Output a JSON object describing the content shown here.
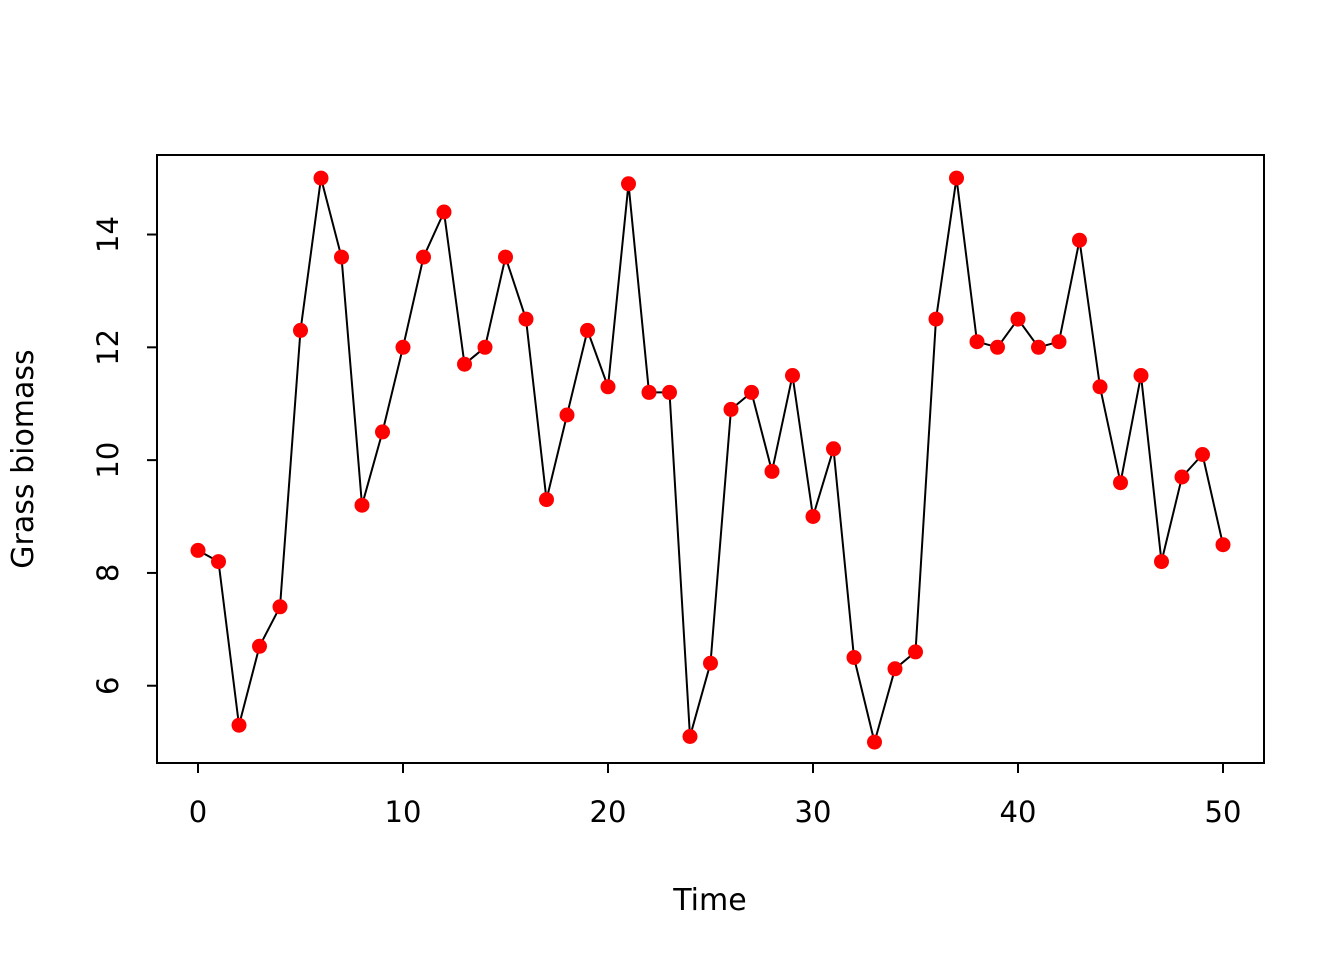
{
  "chart_data": {
    "type": "line",
    "title": "",
    "xlabel": "Time",
    "ylabel": "Grass biomass",
    "series_name": "Grass biomass",
    "x": [
      0,
      1,
      2,
      3,
      4,
      5,
      6,
      7,
      8,
      9,
      10,
      11,
      12,
      13,
      14,
      15,
      16,
      17,
      18,
      19,
      20,
      21,
      22,
      23,
      24,
      25,
      26,
      27,
      28,
      29,
      30,
      31,
      32,
      33,
      34,
      35,
      36,
      37,
      38,
      39,
      40,
      41,
      42,
      43,
      44,
      45,
      46,
      47,
      48,
      49,
      50
    ],
    "values": [
      8.4,
      8.2,
      5.3,
      6.7,
      7.4,
      12.3,
      15.0,
      13.6,
      9.2,
      10.5,
      12.0,
      13.6,
      14.4,
      11.7,
      12.0,
      13.6,
      12.5,
      9.3,
      10.8,
      12.3,
      11.3,
      14.9,
      11.2,
      11.2,
      5.1,
      6.4,
      10.9,
      11.2,
      9.8,
      11.5,
      9.0,
      10.2,
      6.5,
      5.0,
      6.3,
      6.6,
      12.5,
      15.0,
      12.1,
      12.0,
      12.5,
      12.0,
      12.1,
      13.9,
      11.3,
      9.6,
      11.5,
      8.2,
      9.7,
      10.1,
      8.5
    ],
    "x_ticks": [
      0,
      10,
      20,
      30,
      40,
      50
    ],
    "y_ticks": [
      6,
      8,
      10,
      12,
      14
    ],
    "xlim": [
      -2,
      52
    ],
    "ylim": [
      4.63,
      15.41
    ],
    "grid": false,
    "legend": "none",
    "marker": "filled-circle",
    "colors": {
      "point": "#ff0000",
      "line": "#000000",
      "axis": "#000000",
      "background": "#ffffff"
    }
  }
}
